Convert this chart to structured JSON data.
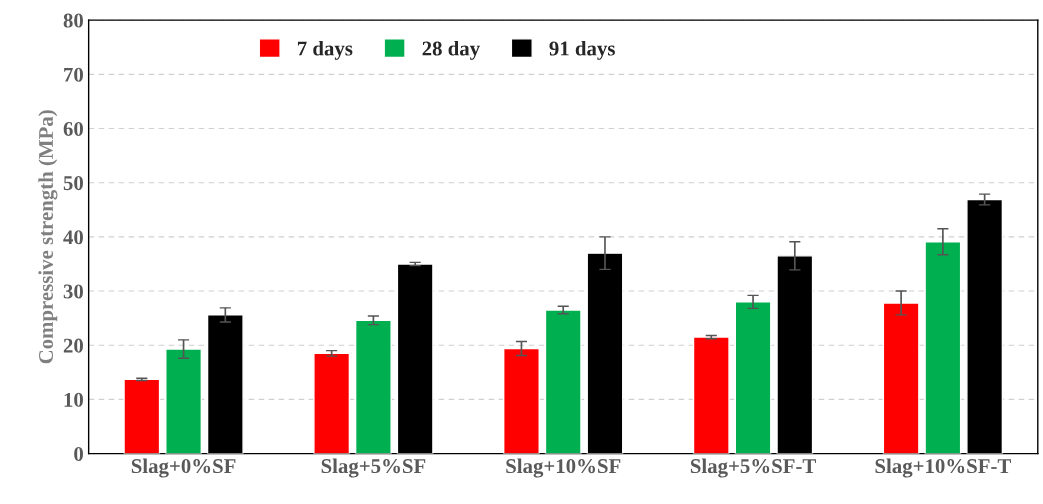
{
  "chart_data": {
    "type": "bar",
    "ylabel": "Compressive strength (MPa)",
    "categories": [
      "Slag+0%SF",
      "Slag+5%SF",
      "Slag+10%SF",
      "Slag+5%SF-T",
      "Slag+10%SF-T"
    ],
    "series": [
      {
        "name": "7 days",
        "color": "#ff0000",
        "values": [
          13.7,
          18.5,
          19.4,
          21.5,
          27.8
        ],
        "errors": [
          0.2,
          0.5,
          1.3,
          0.3,
          2.2
        ]
      },
      {
        "name": "28 day",
        "color": "#00b050",
        "values": [
          19.3,
          24.6,
          26.5,
          28.0,
          39.1
        ],
        "errors": [
          1.7,
          0.8,
          0.7,
          1.2,
          2.4
        ]
      },
      {
        "name": "91 days",
        "color": "#000000",
        "values": [
          25.6,
          35.0,
          37.0,
          36.5,
          46.9
        ],
        "errors": [
          1.3,
          0.3,
          3.0,
          2.6,
          1.0
        ]
      }
    ],
    "ylim": [
      0,
      80
    ],
    "yticks": [
      0,
      10,
      20,
      30,
      40,
      50,
      60,
      70,
      80
    ],
    "grid": "y",
    "legend": "top left"
  }
}
